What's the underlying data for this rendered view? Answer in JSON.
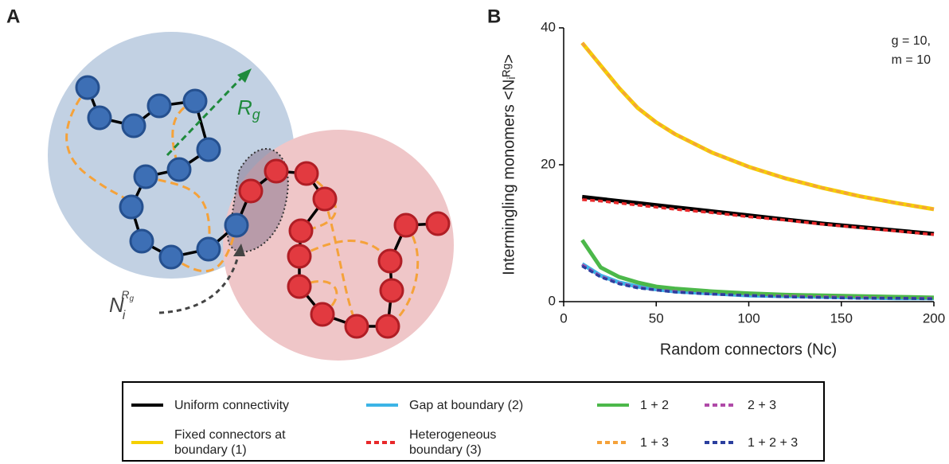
{
  "figure": {
    "panels": [
      "A",
      "B"
    ],
    "diagram": {
      "radius_symbol": "R",
      "radius_subscript": "g",
      "count_symbol": "N",
      "count_subscript": "i",
      "count_superscript": "R",
      "count_superscript_subscript": "g"
    }
  },
  "chart_data": {
    "type": "line",
    "xlabel": "Random connectors (Nᴄ)",
    "ylabel": "Intermingling monomers <Nᵢᴿᵍ>",
    "annotation": [
      "g = 10,",
      "m = 10"
    ],
    "x": [
      10,
      20,
      30,
      40,
      50,
      60,
      80,
      100,
      120,
      140,
      160,
      180,
      200
    ],
    "xlim": [
      0,
      200
    ],
    "xticks": [
      0,
      50,
      100,
      150,
      200
    ],
    "ylim": [
      0,
      40
    ],
    "yticks": [
      0,
      20,
      40
    ],
    "series": [
      {
        "name": "Uniform connectivity",
        "color": "#000000",
        "dashed": false,
        "values": [
          15.3,
          15.0,
          14.7,
          14.4,
          14.1,
          13.8,
          13.2,
          12.6,
          12.0,
          11.4,
          10.9,
          10.4,
          9.9
        ]
      },
      {
        "name": "Fixed connectors at boundary (1)",
        "color": "#f5d000",
        "dashed": false,
        "values": [
          37.8,
          34.5,
          31.2,
          28.3,
          26.2,
          24.5,
          21.8,
          19.7,
          18.0,
          16.6,
          15.4,
          14.4,
          13.5
        ]
      },
      {
        "name": "Gap at boundary (2)",
        "color": "#3cb4e6",
        "dashed": false,
        "values": [
          5.5,
          3.8,
          2.8,
          2.2,
          1.8,
          1.5,
          1.2,
          0.9,
          0.8,
          0.7,
          0.6,
          0.5,
          0.5
        ]
      },
      {
        "name": "Heterogeneous boundary (3)",
        "color": "#e8282a",
        "dashed": true,
        "values": [
          14.9,
          14.7,
          14.4,
          14.1,
          13.8,
          13.5,
          13.0,
          12.4,
          11.9,
          11.3,
          10.8,
          10.3,
          9.8
        ]
      },
      {
        "name": "1 + 2",
        "color": "#4cb84a",
        "dashed": false,
        "values": [
          9.0,
          5.0,
          3.6,
          2.8,
          2.2,
          1.9,
          1.5,
          1.2,
          1.0,
          0.9,
          0.8,
          0.7,
          0.6
        ]
      },
      {
        "name": "1 + 3",
        "color": "#f5a23a",
        "dashed": true,
        "values": [
          37.8,
          34.5,
          31.2,
          28.3,
          26.2,
          24.5,
          21.8,
          19.7,
          18.0,
          16.6,
          15.4,
          14.4,
          13.5
        ]
      },
      {
        "name": "2 + 3",
        "color": "#b04aa8",
        "dashed": true,
        "values": [
          5.4,
          3.7,
          2.7,
          2.1,
          1.7,
          1.5,
          1.1,
          0.9,
          0.8,
          0.7,
          0.6,
          0.5,
          0.5
        ]
      },
      {
        "name": "1 + 2 + 3",
        "color": "#2b3f9e",
        "dashed": true,
        "values": [
          5.2,
          3.6,
          2.6,
          2.0,
          1.7,
          1.4,
          1.1,
          0.9,
          0.7,
          0.6,
          0.5,
          0.5,
          0.4
        ]
      }
    ]
  }
}
